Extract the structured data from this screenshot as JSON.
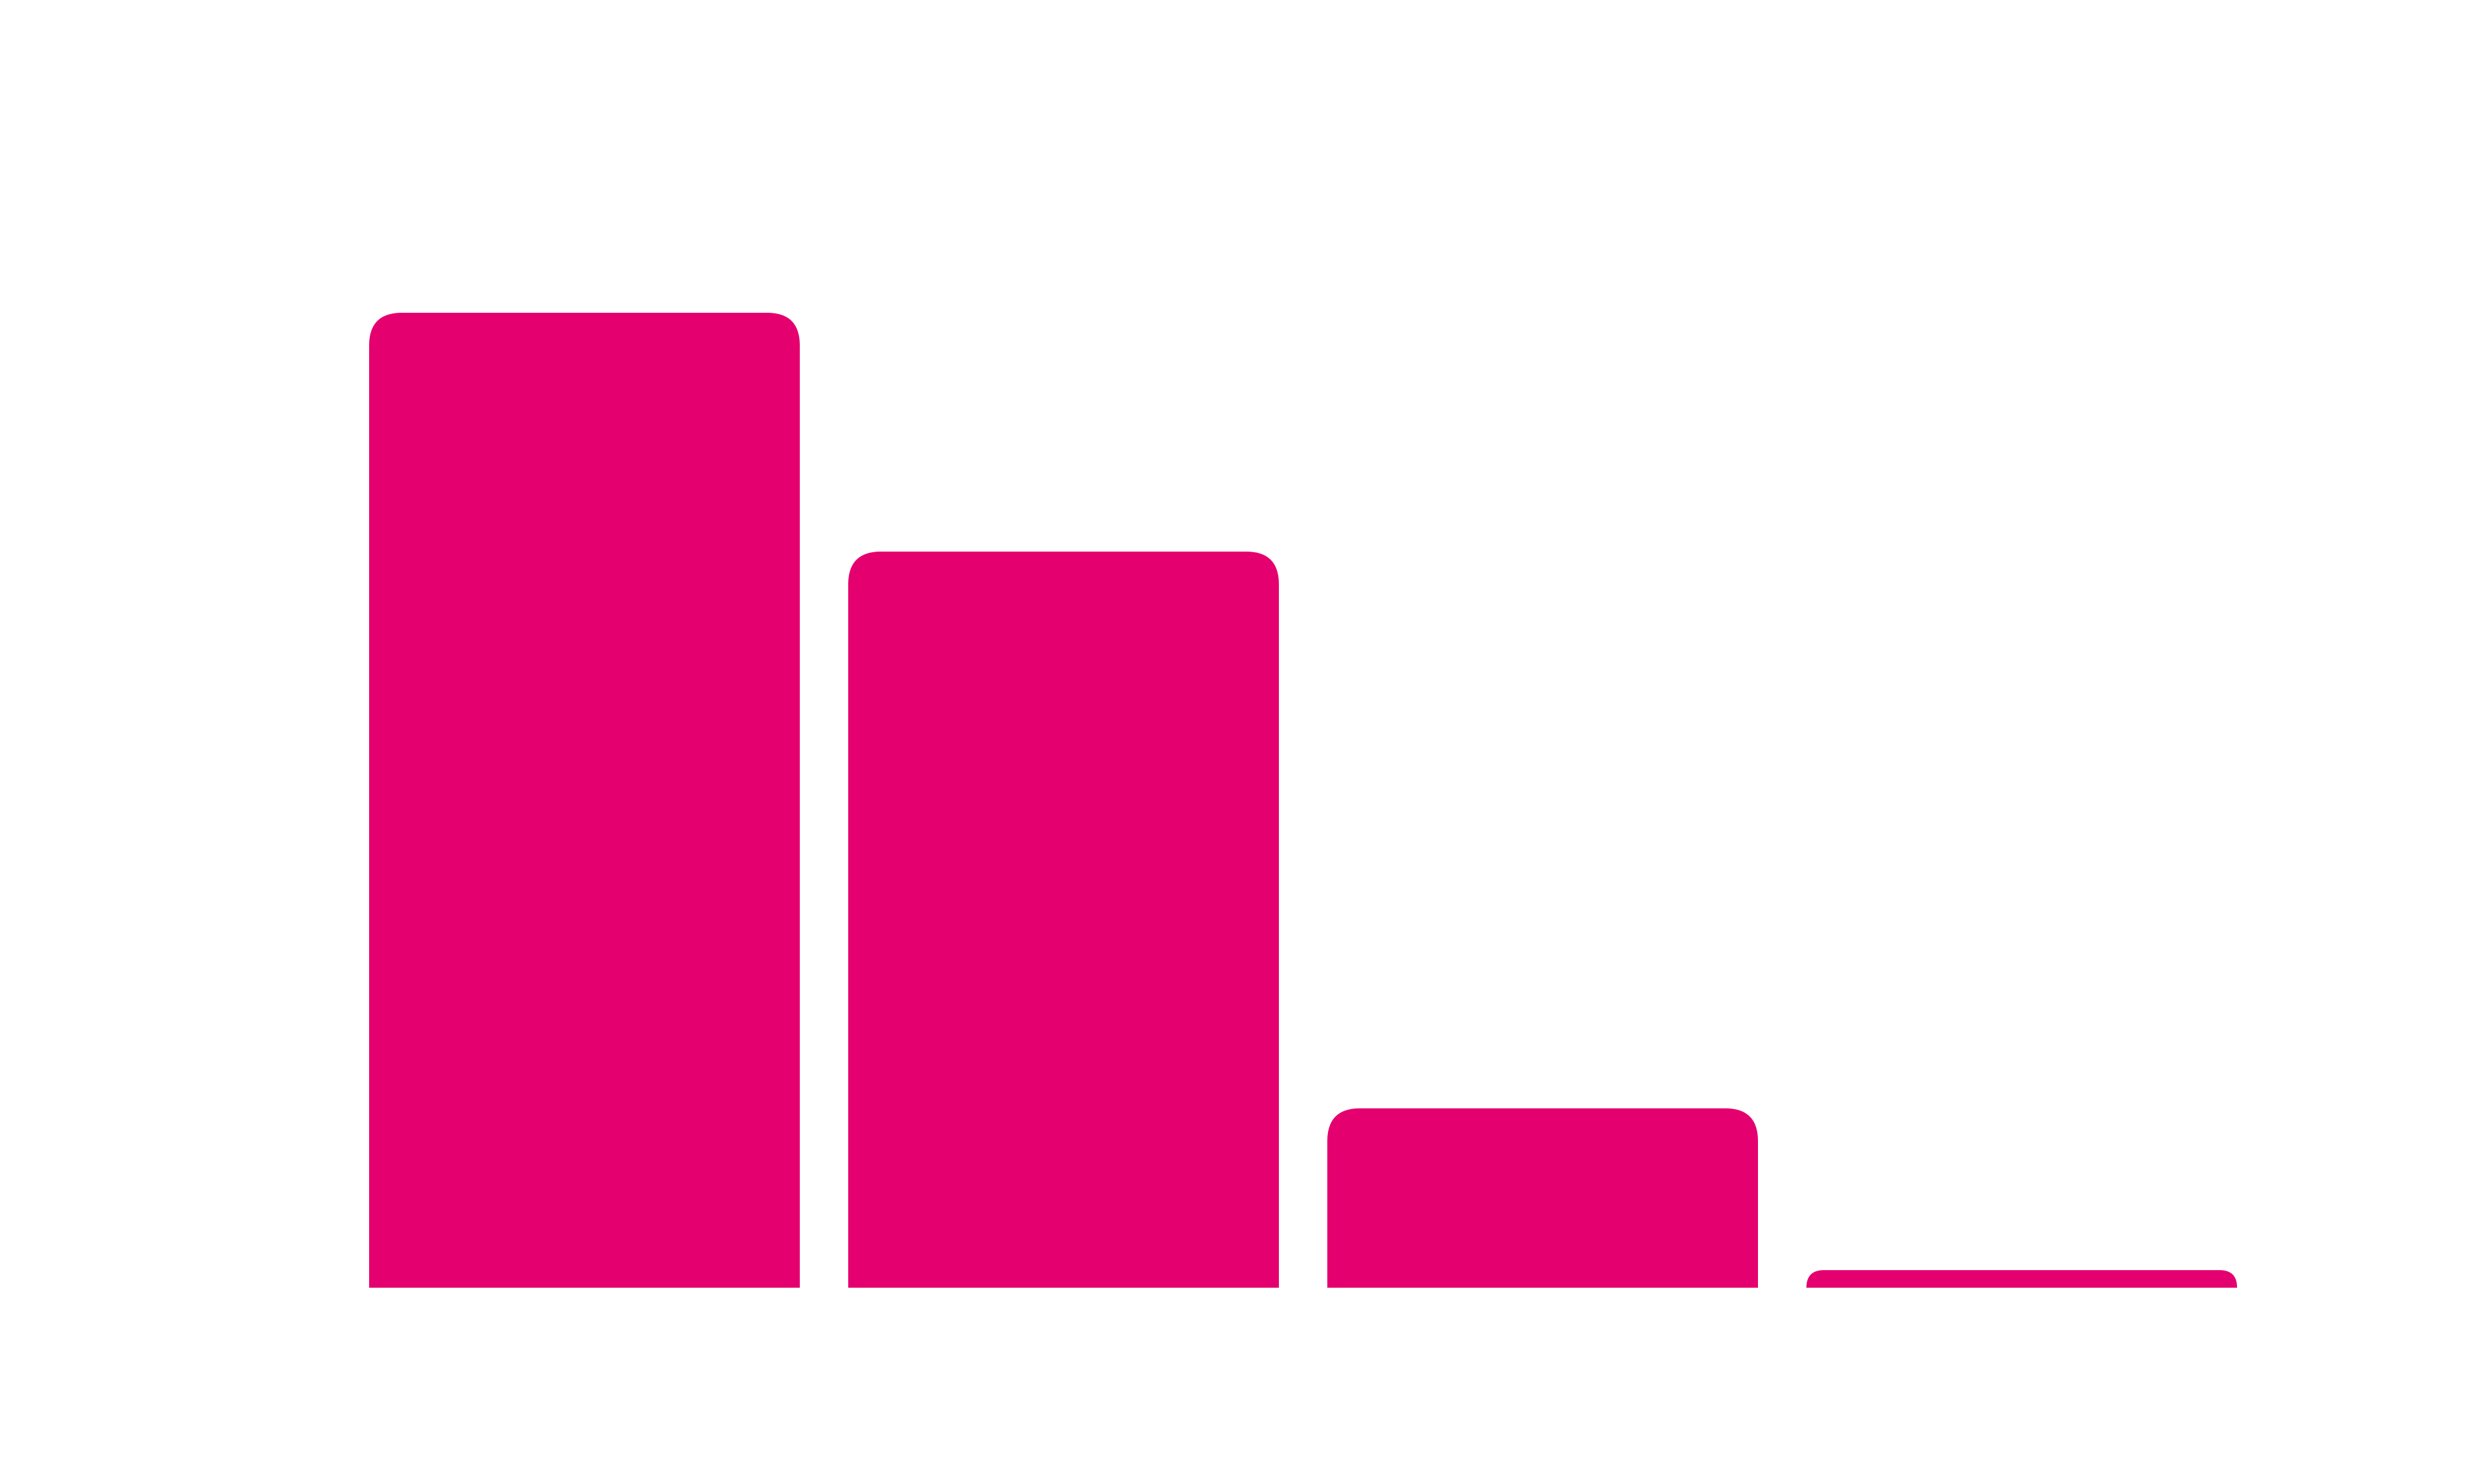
{
  "chart_data": {
    "type": "bar",
    "categories": [
      "",
      "",
      "",
      ""
    ],
    "values": [
      100,
      75.5,
      18.4,
      1.8
    ],
    "ylim": [
      0,
      100
    ],
    "grid": false,
    "legend": "none",
    "bar_color": "#E5006F",
    "background_color": "#FFFFFF"
  }
}
